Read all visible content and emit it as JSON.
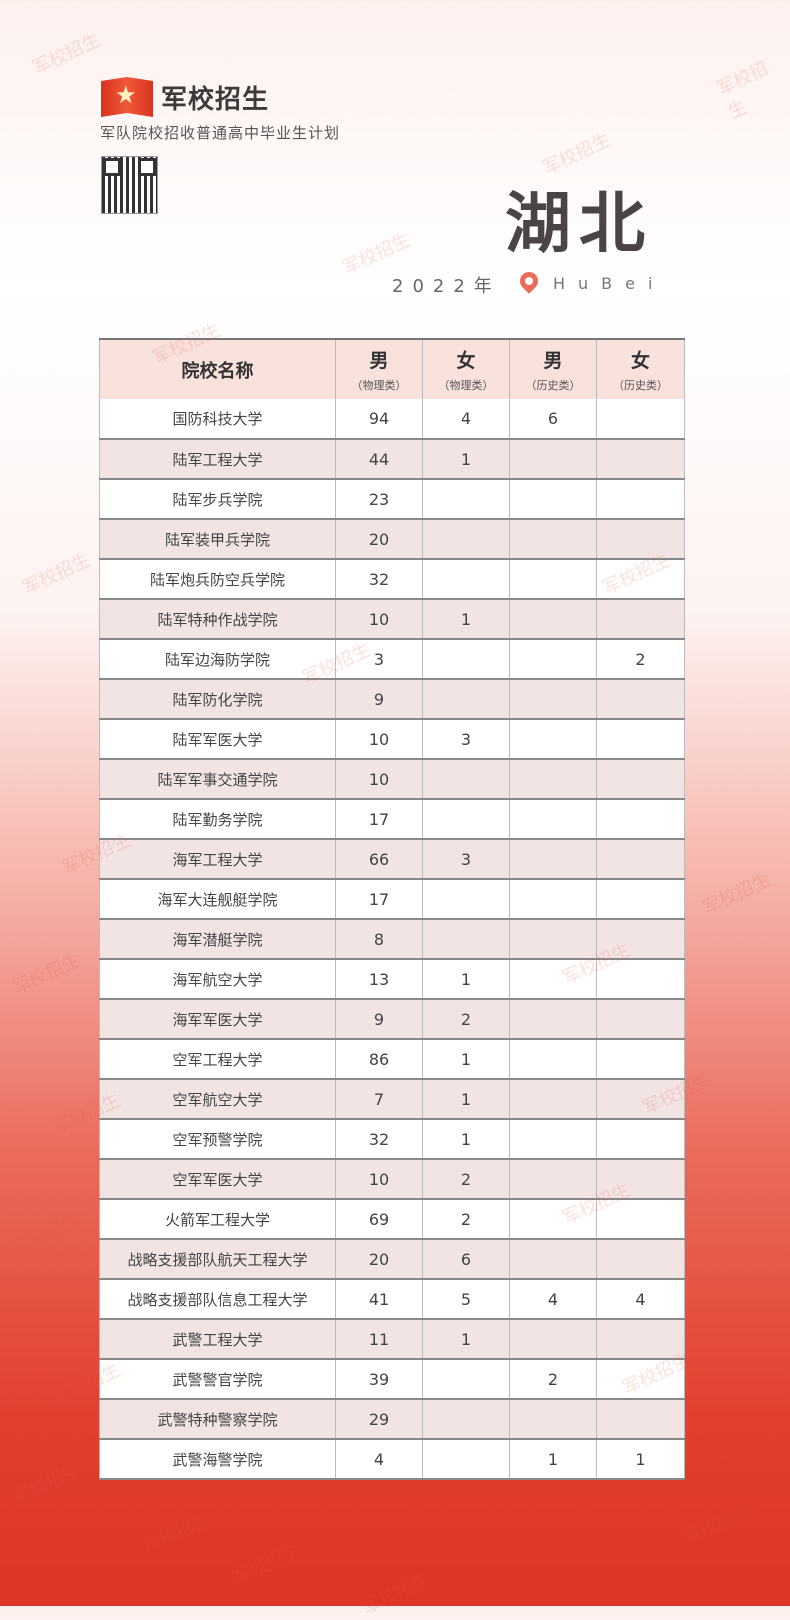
{
  "brand": {
    "logo_text": "军校招生",
    "subtitle": "军队院校招收普通高中毕业生计划"
  },
  "province": "湖北",
  "year": "2022年",
  "pinyin": "HuBei",
  "watermark": "军校招生",
  "table": {
    "headers": [
      {
        "label": "院校名称"
      },
      {
        "label": "男",
        "sub": "（物理类）"
      },
      {
        "label": "女",
        "sub": "（物理类）"
      },
      {
        "label": "男",
        "sub": "（历史类）"
      },
      {
        "label": "女",
        "sub": "（历史类）"
      }
    ],
    "rows": [
      [
        "国防科技大学",
        "94",
        "4",
        "6",
        ""
      ],
      [
        "陆军工程大学",
        "44",
        "1",
        "",
        ""
      ],
      [
        "陆军步兵学院",
        "23",
        "",
        "",
        ""
      ],
      [
        "陆军装甲兵学院",
        "20",
        "",
        "",
        ""
      ],
      [
        "陆军炮兵防空兵学院",
        "32",
        "",
        "",
        ""
      ],
      [
        "陆军特种作战学院",
        "10",
        "1",
        "",
        ""
      ],
      [
        "陆军边海防学院",
        "3",
        "",
        "",
        "2"
      ],
      [
        "陆军防化学院",
        "9",
        "",
        "",
        ""
      ],
      [
        "陆军军医大学",
        "10",
        "3",
        "",
        ""
      ],
      [
        "陆军军事交通学院",
        "10",
        "",
        "",
        ""
      ],
      [
        "陆军勤务学院",
        "17",
        "",
        "",
        ""
      ],
      [
        "海军工程大学",
        "66",
        "3",
        "",
        ""
      ],
      [
        "海军大连舰艇学院",
        "17",
        "",
        "",
        ""
      ],
      [
        "海军潜艇学院",
        "8",
        "",
        "",
        ""
      ],
      [
        "海军航空大学",
        "13",
        "1",
        "",
        ""
      ],
      [
        "海军军医大学",
        "9",
        "2",
        "",
        ""
      ],
      [
        "空军工程大学",
        "86",
        "1",
        "",
        ""
      ],
      [
        "空军航空大学",
        "7",
        "1",
        "",
        ""
      ],
      [
        "空军预警学院",
        "32",
        "1",
        "",
        ""
      ],
      [
        "空军军医大学",
        "10",
        "2",
        "",
        ""
      ],
      [
        "火箭军工程大学",
        "69",
        "2",
        "",
        ""
      ],
      [
        "战略支援部队航天工程大学",
        "20",
        "6",
        "",
        ""
      ],
      [
        "战略支援部队信息工程大学",
        "41",
        "5",
        "4",
        "4"
      ],
      [
        "武警工程大学",
        "11",
        "1",
        "",
        ""
      ],
      [
        "武警警官学院",
        "39",
        "",
        "2",
        ""
      ],
      [
        "武警特种警察学院",
        "29",
        "",
        "",
        ""
      ],
      [
        "武警海警学院",
        "4",
        "",
        "1",
        "1"
      ]
    ]
  }
}
